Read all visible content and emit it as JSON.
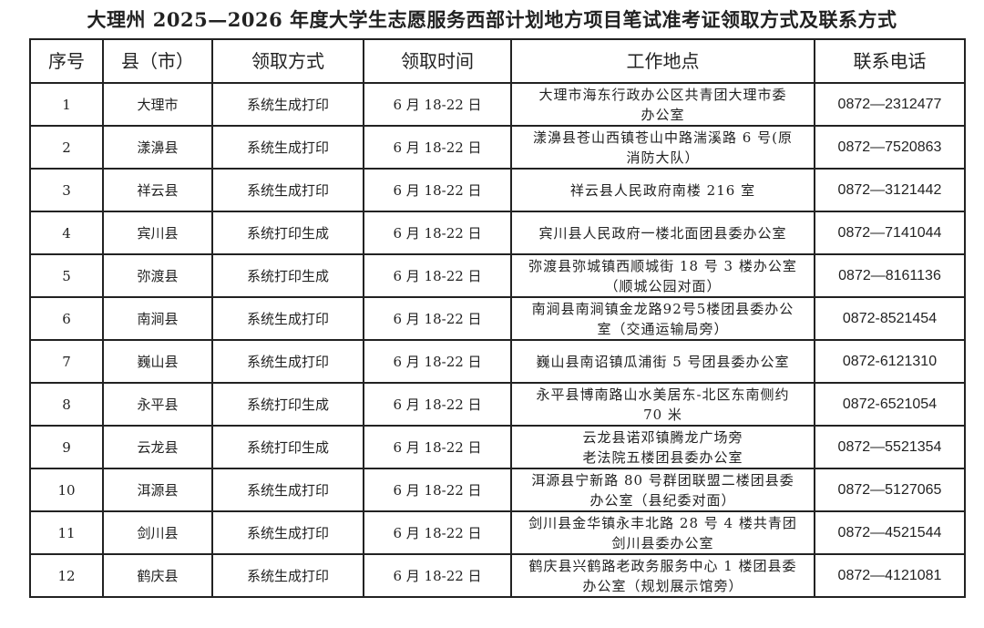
{
  "title": "大理州 2025—2026 年度大学生志愿服务西部计划地方项目笔试准考证领取方式及联系方式",
  "table": {
    "headers": [
      "序号",
      "县（市）",
      "领取方式",
      "领取时间",
      "工作地点",
      "联系电话"
    ],
    "rows": [
      {
        "no": "1",
        "county": "大理市",
        "method": "系统生成打印",
        "time": "6 月 18-22 日",
        "address": "大理市海东行政办公区共青团大理市委\n办公室",
        "phone": "0872—2312477"
      },
      {
        "no": "2",
        "county": "漾濞县",
        "method": "系统生成打印",
        "time": "6 月 18-22 日",
        "address": "漾濞县苍山西镇苍山中路湍溪路 6 号(原\n消防大队）",
        "phone": "0872—7520863"
      },
      {
        "no": "3",
        "county": "祥云县",
        "method": "系统生成打印",
        "time": "6 月 18-22 日",
        "address": "祥云县人民政府南楼 216 室",
        "phone": "0872—3121442"
      },
      {
        "no": "4",
        "county": "宾川县",
        "method": "系统打印生成",
        "time": "6 月 18-22 日",
        "address": "宾川县人民政府一楼北面团县委办公室",
        "phone": "0872—7141044"
      },
      {
        "no": "5",
        "county": "弥渡县",
        "method": "系统打印生成",
        "time": "6 月 18-22 日",
        "address": "弥渡县弥城镇西顺城街 18 号 3 楼办公室\n（顺城公园对面）",
        "phone": "0872—8161136"
      },
      {
        "no": "6",
        "county": "南涧县",
        "method": "系统生成打印",
        "time": "6 月 18-22 日",
        "address": "南涧县南涧镇金龙路92号5楼团县委办公\n室（交通运输局旁）",
        "phone": "0872-8521454"
      },
      {
        "no": "7",
        "county": "巍山县",
        "method": "系统生成打印",
        "time": "6 月 18-22 日",
        "address": "巍山县南诏镇瓜浦街 5 号团县委办公室",
        "phone": "0872-6121310"
      },
      {
        "no": "8",
        "county": "永平县",
        "method": "系统打印生成",
        "time": "6 月 18-22 日",
        "address": "永平县博南路山水美居东-北区东南侧约\n70 米",
        "phone": "0872-6521054"
      },
      {
        "no": "9",
        "county": "云龙县",
        "method": "系统打印生成",
        "time": "6 月 18-22 日",
        "address": "云龙县诺邓镇腾龙广场旁\n老法院五楼团县委办公室",
        "phone": "0872—5521354"
      },
      {
        "no": "10",
        "county": "洱源县",
        "method": "系统生成打印",
        "time": "6 月 18-22 日",
        "address": "洱源县宁新路 80 号群团联盟二楼团县委\n办公室（县纪委对面）",
        "phone": "0872—5127065"
      },
      {
        "no": "11",
        "county": "剑川县",
        "method": "系统生成打印",
        "time": "6 月 18-22 日",
        "address": "剑川县金华镇永丰北路 28 号 4 楼共青团\n剑川县委办公室",
        "phone": "0872—4521544"
      },
      {
        "no": "12",
        "county": "鹤庆县",
        "method": "系统生成打印",
        "time": "6 月 18-22 日",
        "address": "鹤庆县兴鹤路老政务服务中心 1 楼团县委\n办公室（规划展示馆旁）",
        "phone": "0872—4121081"
      }
    ]
  }
}
